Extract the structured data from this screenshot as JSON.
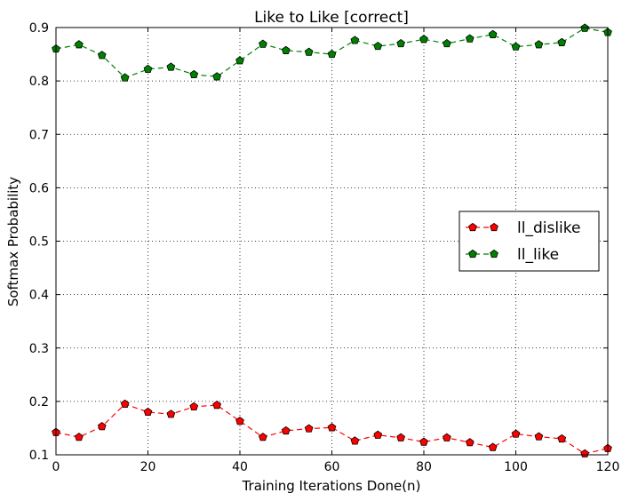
{
  "chart_data": {
    "type": "line",
    "title": "Like to Like [correct]",
    "xlabel": "Training Iterations Done(n)",
    "ylabel": "Softmax Probability",
    "xlim": [
      0,
      120
    ],
    "ylim": [
      0.1,
      0.9
    ],
    "xticks": [
      0,
      20,
      40,
      60,
      80,
      100,
      120
    ],
    "xtick_labels": [
      "0",
      "20",
      "40",
      "60",
      "80",
      "100",
      "120"
    ],
    "yticks": [
      0.1,
      0.2,
      0.3,
      0.4,
      0.5,
      0.6,
      0.7,
      0.8,
      0.9
    ],
    "ytick_labels": [
      "0.1",
      "0.2",
      "0.3",
      "0.4",
      "0.5",
      "0.6",
      "0.7",
      "0.8",
      "0.9"
    ],
    "grid": true,
    "legend_position": "center-right",
    "x": [
      0,
      5,
      10,
      15,
      20,
      25,
      30,
      35,
      40,
      45,
      50,
      55,
      60,
      65,
      70,
      75,
      80,
      85,
      90,
      95,
      100,
      105,
      110,
      115,
      120
    ],
    "series": [
      {
        "name": "ll_dislike",
        "color": "#ff0000",
        "marker": "pentagon",
        "linestyle": "dashed",
        "values": [
          0.142,
          0.133,
          0.153,
          0.195,
          0.18,
          0.176,
          0.19,
          0.193,
          0.163,
          0.133,
          0.145,
          0.149,
          0.151,
          0.126,
          0.137,
          0.132,
          0.124,
          0.132,
          0.123,
          0.114,
          0.139,
          0.134,
          0.13,
          0.102,
          0.112
        ]
      },
      {
        "name": "ll_like",
        "color": "#008000",
        "marker": "pentagon",
        "linestyle": "dashed",
        "values": [
          0.86,
          0.868,
          0.848,
          0.806,
          0.822,
          0.826,
          0.812,
          0.808,
          0.838,
          0.869,
          0.857,
          0.854,
          0.85,
          0.876,
          0.865,
          0.87,
          0.878,
          0.87,
          0.879,
          0.887,
          0.864,
          0.868,
          0.872,
          0.899,
          0.891
        ]
      }
    ]
  }
}
